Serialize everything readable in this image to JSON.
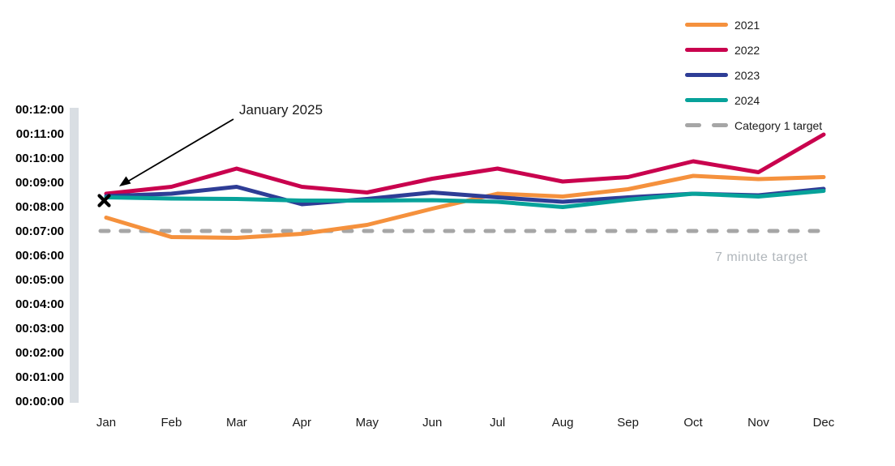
{
  "annotation": {
    "label": "January 2025",
    "marker": "x-marker",
    "marker_value_seconds": 495
  },
  "target_note": "7 minute target",
  "legend": {
    "items": [
      {
        "label": "2021",
        "color": "#F5913D",
        "dashed": false
      },
      {
        "label": "2022",
        "color": "#C9024E",
        "dashed": false
      },
      {
        "label": "2023",
        "color": "#2E3D96",
        "dashed": false
      },
      {
        "label": "2024",
        "color": "#07A29A",
        "dashed": false
      },
      {
        "label": "Category 1 target",
        "color": "#A6A6A6",
        "dashed": true
      }
    ]
  },
  "chart_data": {
    "type": "line",
    "categories": [
      "Jan",
      "Feb",
      "Mar",
      "Apr",
      "May",
      "Jun",
      "Jul",
      "Aug",
      "Sep",
      "Oct",
      "Nov",
      "Dec"
    ],
    "y_ticks": [
      "00:00:00",
      "00:01:00",
      "00:02:00",
      "00:03:00",
      "00:04:00",
      "00:05:00",
      "00:06:00",
      "00:07:00",
      "00:08:00",
      "00:09:00",
      "00:10:00",
      "00:11:00",
      "00:12:00"
    ],
    "ylim_seconds": [
      0,
      720
    ],
    "unit": "hh:mm:ss response time",
    "grid": false,
    "legend_position": "top-right",
    "series": [
      {
        "name": "2021",
        "color": "#F5913D",
        "values_seconds": [
          453,
          405,
          403,
          413,
          435,
          475,
          512,
          505,
          523,
          556,
          548,
          553
        ]
      },
      {
        "name": "2022",
        "color": "#C9024E",
        "values_seconds": [
          512,
          529,
          574,
          529,
          515,
          549,
          574,
          542,
          553,
          592,
          565,
          658
        ]
      },
      {
        "name": "2023",
        "color": "#2E3D96",
        "values_seconds": [
          506,
          512,
          529,
          486,
          499,
          515,
          503,
          492,
          503,
          512,
          508,
          524
        ]
      },
      {
        "name": "2024",
        "color": "#07A29A",
        "values_seconds": [
          503,
          500,
          499,
          495,
          495,
          496,
          492,
          479,
          497,
          512,
          505,
          519
        ]
      }
    ],
    "target": {
      "name": "Category 1 target",
      "value_seconds": 420,
      "color": "#A6A6A6",
      "style": "dashed"
    },
    "annotation_point": {
      "category": "Jan",
      "label": "January 2025",
      "value_seconds": 495,
      "marker": "x",
      "marker_color": "#000000"
    }
  }
}
